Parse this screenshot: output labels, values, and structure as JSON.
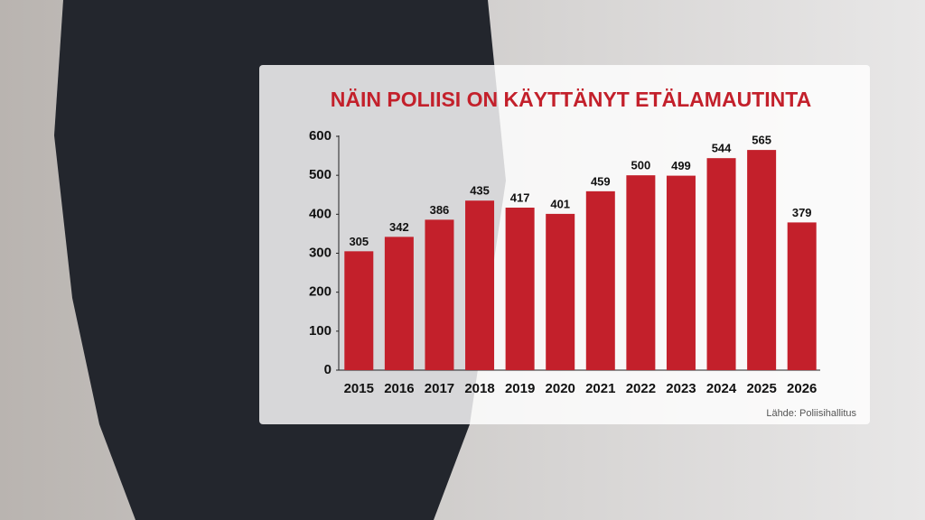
{
  "chart_data": {
    "type": "bar",
    "title": "NÄIN POLIISI ON KÄYTTÄNYT ETÄLAMAUTINTA",
    "source": "Lähde: Poliisihallitus",
    "categories": [
      "2015",
      "2016",
      "2017",
      "2018",
      "2019",
      "2020",
      "2021",
      "2022",
      "2023",
      "2024",
      "2025",
      "2026"
    ],
    "values": [
      305,
      342,
      386,
      435,
      417,
      401,
      459,
      500,
      499,
      544,
      565,
      379
    ],
    "color": "#c3202b",
    "ylim": [
      0,
      600
    ],
    "yticks": [
      0,
      100,
      200,
      300,
      400,
      500,
      600
    ],
    "grid": false
  }
}
